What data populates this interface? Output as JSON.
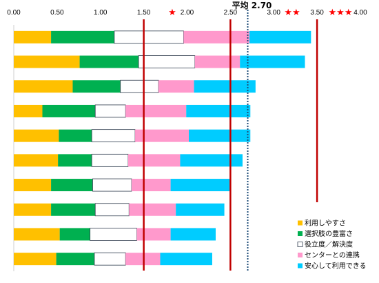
{
  "chart_data": {
    "type": "bar",
    "orientation": "horizontal",
    "stacked": true,
    "xlim": [
      0,
      4
    ],
    "xaxis_position": "top",
    "xticks": [
      0,
      0.5,
      1,
      1.5,
      2,
      2.5,
      3,
      3.5,
      4
    ],
    "xtick_labels": [
      "0.00",
      "0.50",
      "1.00",
      "1.50",
      "2.00",
      "2.50",
      "3.00",
      "3.50",
      "4.00"
    ],
    "grid": false,
    "legend_position": "bottom-right",
    "series": [
      {
        "name": "利用しやすさ",
        "color": "#FFC000",
        "values": [
          0.43,
          0.76,
          0.68,
          0.33,
          0.52,
          0.51,
          0.43,
          0.43,
          0.53,
          0.49
        ]
      },
      {
        "name": "選択肢の豊富さ",
        "color": "#00B050",
        "values": [
          0.73,
          0.68,
          0.55,
          0.61,
          0.38,
          0.39,
          0.48,
          0.51,
          0.35,
          0.44
        ]
      },
      {
        "name": "役立度／解決度",
        "color": "#FFFFFF",
        "outline": "#2F3C4E",
        "values": [
          0.8,
          0.65,
          0.44,
          0.35,
          0.5,
          0.42,
          0.45,
          0.39,
          0.54,
          0.36
        ]
      },
      {
        "name": "センターとの連携",
        "color": "#FF99CC",
        "values": [
          0.76,
          0.52,
          0.41,
          0.7,
          0.62,
          0.6,
          0.45,
          0.54,
          0.39,
          0.4
        ]
      },
      {
        "name": "安心して利用できる",
        "color": "#00CCFF",
        "values": [
          0.71,
          0.75,
          0.71,
          0.74,
          0.71,
          0.72,
          0.68,
          0.56,
          0.52,
          0.6
        ]
      }
    ],
    "reference_lines": [
      {
        "x": 1.5,
        "color": "#C00000",
        "label": "★"
      },
      {
        "x": 2.5,
        "color": "#C00000",
        "label": "★★"
      },
      {
        "x": 3.5,
        "color": "#C00000",
        "label": "★★★"
      }
    ],
    "star_color": "#FF0000",
    "average_line": {
      "x": 2.7,
      "label": "平均 2.70",
      "color": "#1F4E79",
      "dotted": true
    }
  }
}
